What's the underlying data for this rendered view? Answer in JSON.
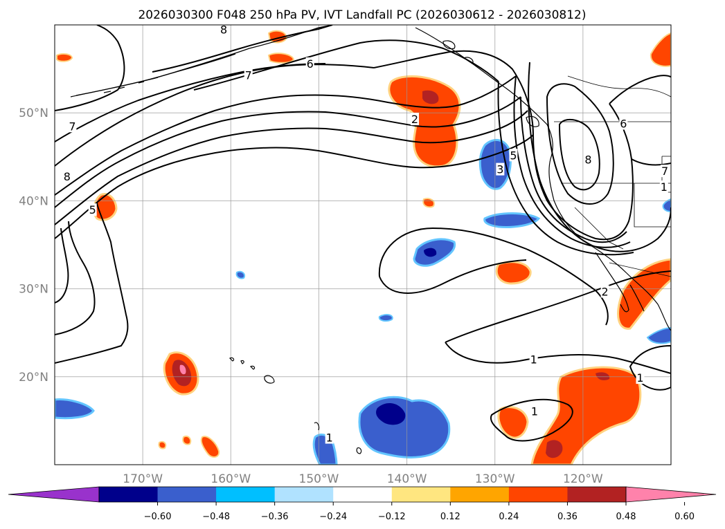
{
  "figure": {
    "title": "2026030300 F048 250 hPa PV, IVT Landfall PC (2026030612 - 2026030812)"
  },
  "map": {
    "extent": {
      "lon": [
        -180,
        -110
      ],
      "lat": [
        10,
        60
      ]
    },
    "lon_ticks": [
      {
        "value": -170,
        "label": "170°W"
      },
      {
        "value": -160,
        "label": "160°W"
      },
      {
        "value": -150,
        "label": "150°W"
      },
      {
        "value": -140,
        "label": "140°W"
      },
      {
        "value": -130,
        "label": "130°W"
      },
      {
        "value": -120,
        "label": "120°W"
      }
    ],
    "lat_ticks": [
      {
        "value": 20,
        "label": "20°N"
      },
      {
        "value": 30,
        "label": "30°N"
      },
      {
        "value": 40,
        "label": "40°N"
      },
      {
        "value": 50,
        "label": "50°N"
      }
    ],
    "gridlines": true,
    "contour_labels": [
      {
        "text": "7",
        "lon": -178,
        "lat": 48.5
      },
      {
        "text": "8",
        "lon": -160.8,
        "lat": 59.5
      },
      {
        "text": "6",
        "lon": -151,
        "lat": 55.6
      },
      {
        "text": "7",
        "lon": -158,
        "lat": 54.3
      },
      {
        "text": "8",
        "lon": -178.6,
        "lat": 42.8
      },
      {
        "text": "5",
        "lon": -175.7,
        "lat": 39.0
      },
      {
        "text": "2",
        "lon": -139.1,
        "lat": 49.3
      },
      {
        "text": "5",
        "lon": -127.9,
        "lat": 45.2
      },
      {
        "text": "3",
        "lon": -129.4,
        "lat": 43.6
      },
      {
        "text": "8",
        "lon": -119.4,
        "lat": 44.7
      },
      {
        "text": "6",
        "lon": -115.4,
        "lat": 48.8
      },
      {
        "text": "7",
        "lon": -110.7,
        "lat": 43.4
      },
      {
        "text": "1",
        "lon": -110.8,
        "lat": 41.6
      },
      {
        "text": "2",
        "lon": -117.5,
        "lat": 29.7
      },
      {
        "text": "1",
        "lon": -125.6,
        "lat": 22.0
      },
      {
        "text": "1",
        "lon": -113.5,
        "lat": 19.9
      },
      {
        "text": "1",
        "lon": -125.5,
        "lat": 16.1
      },
      {
        "text": "1",
        "lon": -148.8,
        "lat": 13.1
      }
    ]
  },
  "colorbar": {
    "ticks": [
      "−0.60",
      "−0.48",
      "−0.36",
      "−0.24",
      "−0.12",
      "0.12",
      "0.24",
      "0.36",
      "0.48",
      "0.60"
    ],
    "colors": [
      "#9932cc",
      "#00008b",
      "#3a5fcd",
      "#00bfff",
      "#b0e2ff",
      "#ffffff",
      "#ffe680",
      "#ffa500",
      "#ff4500",
      "#b22222",
      "#ff82ab"
    ],
    "extend": "both"
  }
}
